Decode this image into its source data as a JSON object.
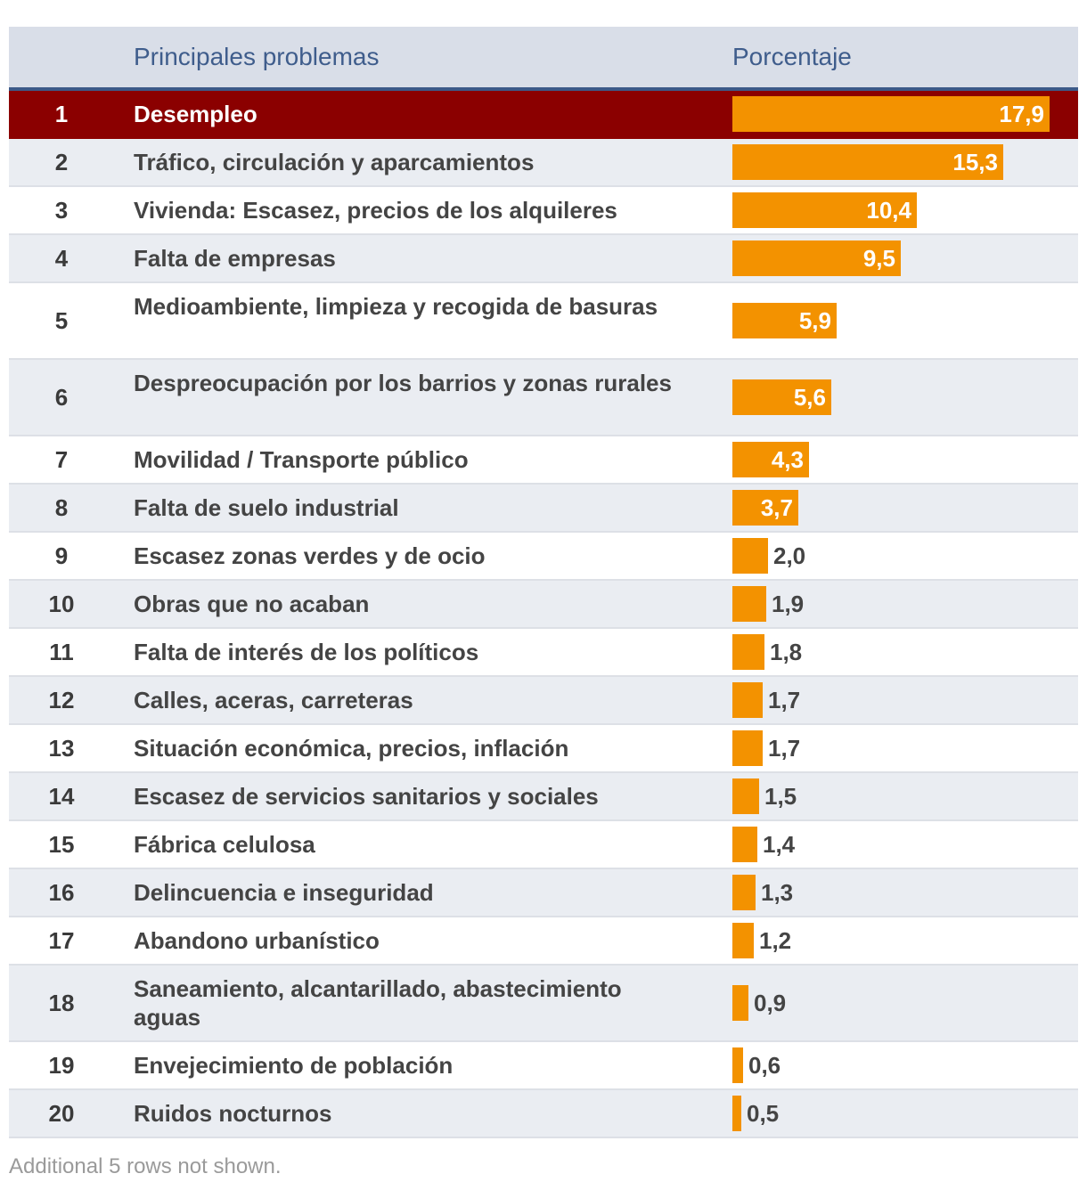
{
  "header": {
    "col_problem": "Principales problemas",
    "col_percent": "Porcentaje"
  },
  "colors": {
    "bar": "#f39200",
    "highlight_row": "#8b0000",
    "header_bg": "#d9dee8",
    "header_text": "#3f5d8c"
  },
  "chart_data": {
    "type": "bar",
    "title": "",
    "categories": [
      "Desempleo",
      "Tráfico, circulación y aparcamientos",
      "Vivienda: Escasez, precios de los alquileres",
      "Falta de empresas",
      "Medioambiente, limpieza y recogida de basuras",
      "Despreocupación por los barrios y zonas rurales",
      "Movilidad / Transporte público",
      "Falta de suelo industrial",
      "Escasez zonas verdes y de ocio",
      "Obras que no acaban",
      "Falta de interés de los políticos",
      "Calles, aceras, carreteras",
      "Situación económica, precios, inflación",
      "Escasez de servicios sanitarios y sociales",
      "Fábrica celulosa",
      "Delincuencia e inseguridad",
      "Abandono urbanístico",
      "Saneamiento, alcantarillado, abastecimiento aguas",
      "Envejecimiento de población",
      "Ruidos nocturnos"
    ],
    "ranks": [
      "1",
      "2",
      "3",
      "4",
      "5",
      "6",
      "7",
      "8",
      "9",
      "10",
      "11",
      "12",
      "13",
      "14",
      "15",
      "16",
      "17",
      "18",
      "19",
      "20"
    ],
    "values": [
      17.9,
      15.3,
      10.4,
      9.5,
      5.9,
      5.6,
      4.3,
      3.7,
      2.0,
      1.9,
      1.8,
      1.7,
      1.7,
      1.5,
      1.4,
      1.3,
      1.2,
      0.9,
      0.6,
      0.5
    ],
    "value_labels": [
      "17,9",
      "15,3",
      "10,4",
      "9,5",
      "5,9",
      "5,6",
      "4,3",
      "3,7",
      "2,0",
      "1,9",
      "1,8",
      "1,7",
      "1,7",
      "1,5",
      "1,4",
      "1,3",
      "1,2",
      "0,9",
      "0,6",
      "0,5"
    ]
  },
  "footnote": "Additional 5 rows not shown."
}
